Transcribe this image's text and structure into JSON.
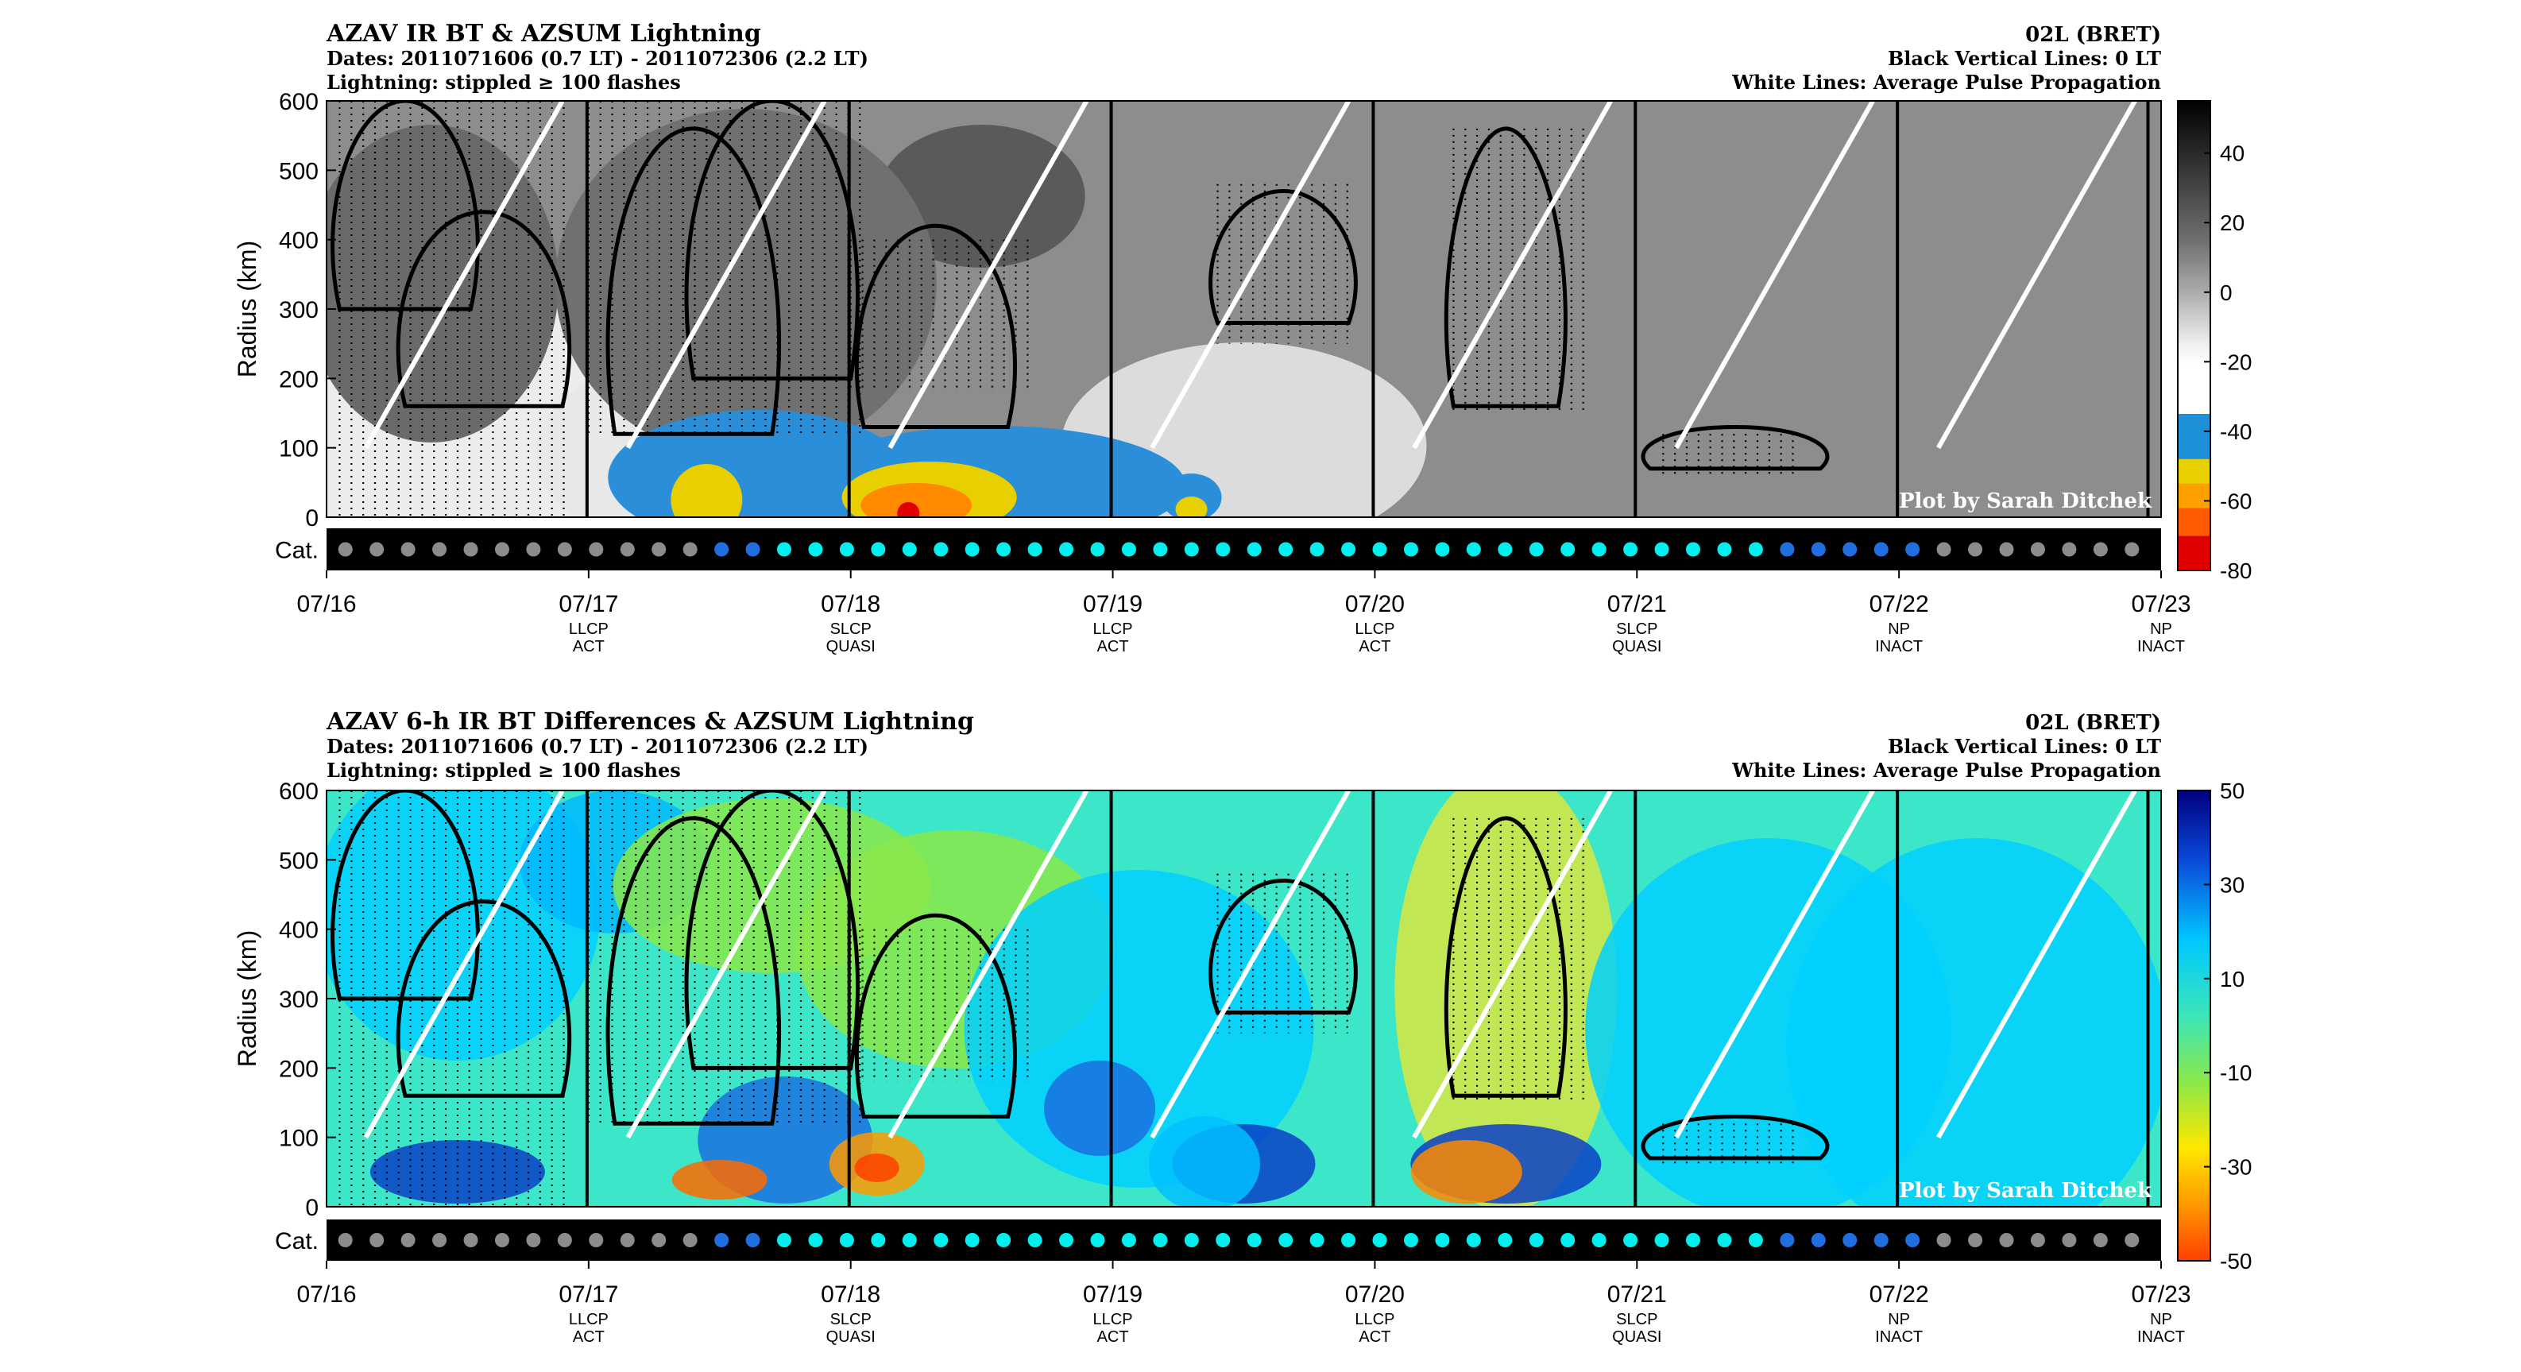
{
  "figure": {
    "colors": {
      "background": "#ffffff",
      "frame": "#000000",
      "white_line": "#ffffff",
      "cat_bar": "#000000"
    }
  },
  "panels": [
    {
      "title": "AZAV IR BT & AZSUM Lightning",
      "dates": "Dates: 2011071606 (0.7 LT) - 2011072306 (2.2 LT)",
      "lightning": "Lightning: stippled ≥ 100 flashes",
      "storm": "02L (BRET)",
      "black_lines": "Black Vertical Lines: 0 LT",
      "white_lines": "White Lines: Average Pulse Propagation",
      "credit": "Plot by Sarah Ditchek",
      "ylabel": "Radius (km)",
      "cat_label": "Cat.",
      "colormap": "gray",
      "colorbar_ticks": [
        "40",
        "20",
        "0",
        "-20",
        "-40",
        "-60",
        "-80"
      ]
    },
    {
      "title": "AZAV 6-h IR BT Differences & AZSUM Lightning",
      "dates": "Dates: 2011071606 (0.7 LT) - 2011072306 (2.2 LT)",
      "lightning": "Lightning: stippled ≥ 100 flashes",
      "storm": "02L (BRET)",
      "black_lines": "Black Vertical Lines: 0 LT",
      "white_lines": "White Lines: Average Pulse Propagation",
      "credit": "Plot by Sarah Ditchek",
      "ylabel": "Radius (km)",
      "cat_label": "Cat.",
      "colormap": "jet",
      "colorbar_ticks": [
        "50",
        "30",
        "10",
        "-10",
        "-30",
        "-50"
      ]
    }
  ],
  "chart_data": [
    {
      "type": "heatmap",
      "title": "AZAV IR BT & AZSUM Lightning",
      "ylabel": "Radius (km)",
      "ylim": [
        0,
        600
      ],
      "yticks": [
        "600",
        "500",
        "400",
        "300",
        "200",
        "100",
        "0"
      ],
      "xlim": [
        "07/16",
        "07/23"
      ],
      "x_tick_labels": [
        "07/16",
        "07/17",
        "07/18",
        "07/19",
        "07/20",
        "07/21",
        "07/22",
        "07/23"
      ],
      "x_sublabels": [
        [
          "",
          ""
        ],
        [
          "LLCP",
          "ACT"
        ],
        [
          "SLCP",
          "QUASI"
        ],
        [
          "LLCP",
          "ACT"
        ],
        [
          "LLCP",
          "ACT"
        ],
        [
          "SLCP",
          "QUASI"
        ],
        [
          "NP",
          "INACT"
        ],
        [
          "NP",
          "INACT"
        ]
      ],
      "colorbar": {
        "range": [
          -80,
          55
        ],
        "ticks": [
          40,
          20,
          0,
          -20,
          -40,
          -60,
          -80
        ]
      },
      "pulse_lines_day_radius": [
        [
          0.15,
          100
        ],
        [
          0.9,
          600
        ]
      ],
      "categories": [
        "gray",
        "gray",
        "gray",
        "gray",
        "gray",
        "gray",
        "gray",
        "gray",
        "gray",
        "gray",
        "gray",
        "gray",
        "blue",
        "blue",
        "cyan",
        "cyan",
        "cyan",
        "cyan",
        "cyan",
        "cyan",
        "cyan",
        "cyan",
        "cyan",
        "cyan",
        "cyan",
        "cyan",
        "cyan",
        "cyan",
        "cyan",
        "cyan",
        "cyan",
        "cyan",
        "cyan",
        "cyan",
        "cyan",
        "cyan",
        "cyan",
        "cyan",
        "cyan",
        "cyan",
        "cyan",
        "cyan",
        "cyan",
        "cyan",
        "cyan",
        "cyan",
        "blue",
        "blue",
        "blue",
        "blue",
        "blue",
        "gray",
        "gray",
        "gray",
        "gray",
        "gray",
        "gray",
        "gray"
      ],
      "category_colors": {
        "gray": "#8c8c8c",
        "blue": "#1f6fe0",
        "cyan": "#00f0f0"
      }
    },
    {
      "type": "heatmap",
      "title": "AZAV 6-h IR BT Differences & AZSUM Lightning",
      "ylabel": "Radius (km)",
      "ylim": [
        0,
        600
      ],
      "yticks": [
        "600",
        "500",
        "400",
        "300",
        "200",
        "100",
        "0"
      ],
      "xlim": [
        "07/16",
        "07/23"
      ],
      "x_tick_labels": [
        "07/16",
        "07/17",
        "07/18",
        "07/19",
        "07/20",
        "07/21",
        "07/22",
        "07/23"
      ],
      "x_sublabels": [
        [
          "",
          ""
        ],
        [
          "LLCP",
          "ACT"
        ],
        [
          "SLCP",
          "QUASI"
        ],
        [
          "LLCP",
          "ACT"
        ],
        [
          "LLCP",
          "ACT"
        ],
        [
          "SLCP",
          "QUASI"
        ],
        [
          "NP",
          "INACT"
        ],
        [
          "NP",
          "INACT"
        ]
      ],
      "colorbar": {
        "range": [
          -50,
          50
        ],
        "ticks": [
          50,
          30,
          10,
          -10,
          -30,
          -50
        ]
      },
      "pulse_lines_day_radius": [
        [
          0.15,
          100
        ],
        [
          0.9,
          600
        ]
      ],
      "categories": [
        "gray",
        "gray",
        "gray",
        "gray",
        "gray",
        "gray",
        "gray",
        "gray",
        "gray",
        "gray",
        "gray",
        "gray",
        "blue",
        "blue",
        "cyan",
        "cyan",
        "cyan",
        "cyan",
        "cyan",
        "cyan",
        "cyan",
        "cyan",
        "cyan",
        "cyan",
        "cyan",
        "cyan",
        "cyan",
        "cyan",
        "cyan",
        "cyan",
        "cyan",
        "cyan",
        "cyan",
        "cyan",
        "cyan",
        "cyan",
        "cyan",
        "cyan",
        "cyan",
        "cyan",
        "cyan",
        "cyan",
        "cyan",
        "cyan",
        "cyan",
        "cyan",
        "blue",
        "blue",
        "blue",
        "blue",
        "blue",
        "gray",
        "gray",
        "gray",
        "gray",
        "gray",
        "gray",
        "gray"
      ],
      "category_colors": {
        "gray": "#8c8c8c",
        "blue": "#1f6fe0",
        "cyan": "#00f0f0"
      }
    }
  ]
}
